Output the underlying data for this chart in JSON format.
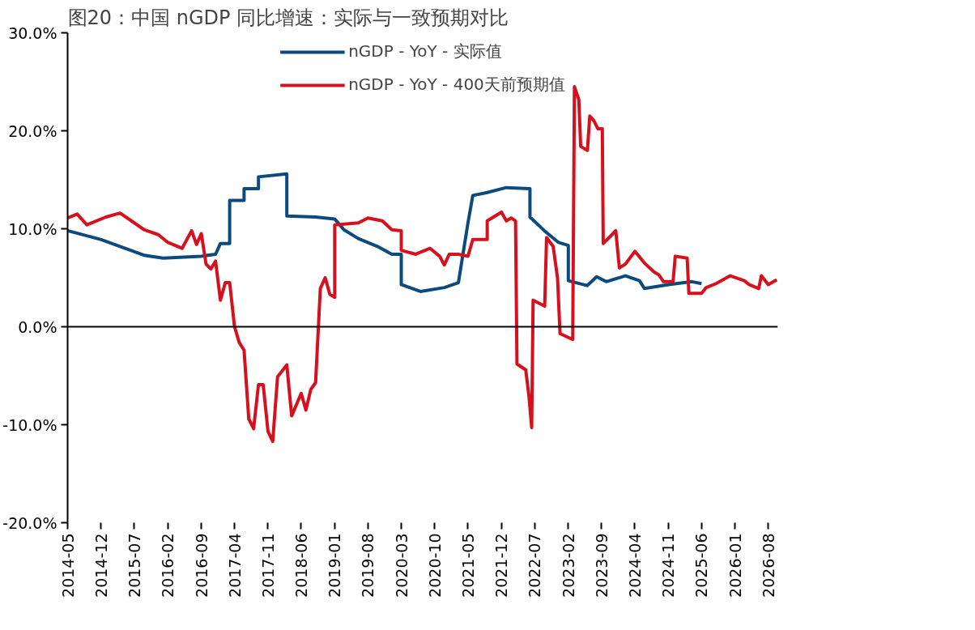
{
  "chart_data": {
    "type": "line",
    "title": "图20：中国 nGDP 同比增速：实际与一致预期对比",
    "series": [
      {
        "name": "nGDP - YoY - 实际值",
        "color": "#0b4a7e",
        "x": [
          "2014-05",
          "2014-12",
          "2015-04",
          "2015-09",
          "2016-01",
          "2016-09",
          "2016-12",
          "2017-01",
          "2017-03",
          "2017-03",
          "2017-06",
          "2017-06",
          "2017-09",
          "2017-09",
          "2018-03",
          "2018-03",
          "2018-09",
          "2019-01",
          "2019-03",
          "2019-06",
          "2019-10",
          "2020-01",
          "2020-03",
          "2020-03",
          "2020-07",
          "2020-12",
          "2021-03",
          "2021-05",
          "2021-06",
          "2021-09",
          "2022-01",
          "2022-06",
          "2022-06",
          "2022-09",
          "2022-12",
          "2023-02",
          "2023-02",
          "2023-06",
          "2023-08",
          "2023-10",
          "2024-02",
          "2024-05",
          "2024-06",
          "2024-11",
          "2025-04",
          "2025-06"
        ],
        "values": [
          9.8,
          8.9,
          8.2,
          7.3,
          7.0,
          7.2,
          7.4,
          8.5,
          8.5,
          12.9,
          12.9,
          14.1,
          14.1,
          15.3,
          15.6,
          11.3,
          11.2,
          11.0,
          9.9,
          9.0,
          8.2,
          7.4,
          7.4,
          4.3,
          3.6,
          4.0,
          4.5,
          10.6,
          13.4,
          13.7,
          14.2,
          14.1,
          11.2,
          9.8,
          8.6,
          8.3,
          4.7,
          4.2,
          5.1,
          4.6,
          5.2,
          4.7,
          3.9,
          4.3,
          4.6,
          4.4
        ]
      },
      {
        "name": "nGDP - YoY - 400天前预期值",
        "color": "#d7101e",
        "x": [
          "2014-05",
          "2014-07",
          "2014-09",
          "2015-01",
          "2015-04",
          "2015-07",
          "2015-09",
          "2015-12",
          "2016-02",
          "2016-05",
          "2016-07",
          "2016-08",
          "2016-09",
          "2016-10",
          "2016-11",
          "2016-12",
          "2017-01",
          "2017-02",
          "2017-03",
          "2017-04",
          "2017-05",
          "2017-06",
          "2017-07",
          "2017-08",
          "2017-09",
          "2017-10",
          "2017-11",
          "2017-12",
          "2018-01",
          "2018-03",
          "2018-04",
          "2018-06",
          "2018-07",
          "2018-08",
          "2018-09",
          "2018-10",
          "2018-11",
          "2018-12",
          "2019-01",
          "2019-01",
          "2019-06",
          "2019-08",
          "2019-11",
          "2020-01",
          "2020-03",
          "2020-03",
          "2020-06",
          "2020-09",
          "2020-11",
          "2020-12",
          "2021-01",
          "2021-03",
          "2021-05",
          "2021-06",
          "2021-09",
          "2021-09",
          "2021-12",
          "2022-01",
          "2022-02",
          "2022-03-01",
          "2022-03-10",
          "2022-05-05",
          "2022-05-25",
          "2022-06-12",
          "2022-06-21",
          "2022-09-03",
          "2022-09-15",
          "2022-10-27",
          "2022-11-24",
          "2022-12-10",
          "2023-03-01",
          "2023-03-12",
          "2023-04-09",
          "2023-04-21",
          "2023-06-03",
          "2023-06-18",
          "2023-07-15",
          "2023-08-09",
          "2023-09-06",
          "2023-09-12",
          "2023-11",
          "2023-12",
          "2023-12-24",
          "2024-02",
          "2024-04",
          "2024-06",
          "2024-08",
          "2024-09",
          "2024-10",
          "2024-12",
          "2024-12-15",
          "2025-03",
          "2025-03-12",
          "2025-06",
          "2025-07",
          "2025-09",
          "2025-12",
          "2026-03",
          "2026-04",
          "2026-06",
          "2026-06-18",
          "2026-08",
          "2026-09-24"
        ],
        "values": [
          11.1,
          11.5,
          10.4,
          11.2,
          11.6,
          10.6,
          9.9,
          9.4,
          8.6,
          8.0,
          9.8,
          8.4,
          9.5,
          6.4,
          5.9,
          6.7,
          2.7,
          4.5,
          4.5,
          0.0,
          -1.6,
          -2.4,
          -9.4,
          -10.4,
          -5.9,
          -5.9,
          -10.7,
          -11.7,
          -5.1,
          -3.9,
          -9.1,
          -6.8,
          -8.5,
          -6.4,
          -5.7,
          3.9,
          5.0,
          3.3,
          3.0,
          10.4,
          10.6,
          11.1,
          10.8,
          9.9,
          9.8,
          7.8,
          7.4,
          8.0,
          7.2,
          6.3,
          7.4,
          7.4,
          7.2,
          8.9,
          8.9,
          10.8,
          11.7,
          10.8,
          11.1,
          10.8,
          -3.8,
          -4.4,
          -7.0,
          -10.3,
          2.7,
          2.1,
          9.1,
          8.2,
          5.0,
          -0.7,
          -1.3,
          24.5,
          23.2,
          18.4,
          18.0,
          21.5,
          21.0,
          20.2,
          20.2,
          8.5,
          9.3,
          9.8,
          6.0,
          6.4,
          7.7,
          6.5,
          5.6,
          5.3,
          4.6,
          4.6,
          7.2,
          7.0,
          3.4,
          3.4,
          4.0,
          4.4,
          5.2,
          4.7,
          4.3,
          3.9,
          5.2,
          4.3,
          4.8
        ]
      }
    ],
    "xlim": [
      "2014-05",
      "2026-10"
    ],
    "xticks": [
      "2014-05",
      "2014-12",
      "2015-07",
      "2016-02",
      "2016-09",
      "2017-04",
      "2017-11",
      "2018-06",
      "2019-01",
      "2019-08",
      "2020-03",
      "2020-10",
      "2021-05",
      "2021-12",
      "2022-07",
      "2023-02",
      "2023-09",
      "2024-04",
      "2024-11",
      "2025-06",
      "2026-01",
      "2026-08"
    ],
    "ylim": [
      -20,
      30
    ],
    "yticks": [
      {
        "value": -20,
        "label": "-20.0%"
      },
      {
        "value": -10,
        "label": "-10.0%"
      },
      {
        "value": 0,
        "label": "0.0%"
      },
      {
        "value": 10,
        "label": "10.0%"
      },
      {
        "value": 20,
        "label": "20.0%"
      },
      {
        "value": 30,
        "label": "30.0%"
      }
    ],
    "ref_lines": [
      {
        "axis": "y",
        "value": 0,
        "color": "#000000"
      }
    ],
    "grid": false,
    "legend": "top",
    "line_style": "solid"
  }
}
